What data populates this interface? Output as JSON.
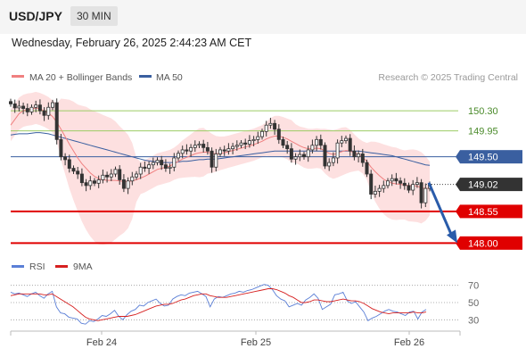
{
  "header": {
    "pair": "USD/JPY",
    "timeframe": "30 MIN"
  },
  "timestamp": "Wednesday, February 26, 2025 2:44:23 AM CET",
  "legend": {
    "ma_label": "MA 20 + Bollinger Bands",
    "ma50_label": "MA 50",
    "credit": "Research © 2025 Trading Central"
  },
  "rsi_legend": {
    "rsi_label": "RSI",
    "ma_label": "9MA"
  },
  "colors": {
    "ma20": "#f08080",
    "ma50": "#3a5fa0",
    "band": "#fde0e0",
    "rsi": "#5b7fd6",
    "rsi_ma": "#d62020",
    "support": "#e00000",
    "resistance": "#9ccc65",
    "arrow": "#2a5caa"
  },
  "chart_data": [
    {
      "type": "candlestick",
      "title": "USD/JPY",
      "ylim": [
        147.85,
        150.55
      ],
      "x_ticks": [
        "Feb 24",
        "Feb 25",
        "Feb 26"
      ],
      "levels": [
        {
          "value": 150.3,
          "label": "150.30",
          "kind": "resistance"
        },
        {
          "value": 149.95,
          "label": "149.95",
          "kind": "resistance"
        },
        {
          "value": 149.5,
          "label": "149.50",
          "kind": "pivot"
        },
        {
          "value": 149.02,
          "label": "149.02",
          "kind": "current"
        },
        {
          "value": 148.55,
          "label": "148.55",
          "kind": "support"
        },
        {
          "value": 148.0,
          "label": "148.00",
          "kind": "support"
        }
      ],
      "series": [
        {
          "name": "Price",
          "values": [
            150.42,
            150.35,
            150.38,
            150.34,
            150.28,
            150.36,
            150.4,
            150.3,
            150.22,
            150.36,
            150.44,
            149.8,
            149.5,
            149.45,
            149.3,
            149.25,
            149.2,
            149.05,
            149.0,
            149.08,
            149.04,
            149.1,
            149.18,
            149.15,
            149.2,
            149.28,
            149.1,
            148.95,
            149.08,
            149.15,
            149.2,
            149.32,
            149.3,
            149.36,
            149.4,
            149.44,
            149.36,
            149.3,
            149.32,
            149.48,
            149.56,
            149.62,
            149.6,
            149.66,
            149.7,
            149.72,
            149.66,
            149.6,
            149.32,
            149.55,
            149.62,
            149.6,
            149.64,
            149.68,
            149.7,
            149.74,
            149.72,
            149.78,
            149.8,
            149.85,
            149.94,
            150.05,
            150.08,
            149.98,
            149.8,
            149.7,
            149.64,
            149.46,
            149.5,
            149.54,
            149.5,
            149.62,
            149.7,
            149.8,
            149.7,
            149.34,
            149.4,
            149.48,
            149.74,
            149.78,
            149.82,
            149.6,
            149.5,
            149.55,
            149.4,
            149.2,
            148.85,
            148.9,
            148.95,
            149.0,
            149.08,
            149.12,
            149.08,
            149.04,
            149.0,
            148.92,
            149.02,
            149.05,
            148.7,
            148.95,
            149.02
          ]
        },
        {
          "name": "MA 20",
          "values": [
            150.05,
            150.15,
            150.25,
            150.3,
            150.32,
            150.33,
            150.35,
            150.33,
            150.3,
            150.26,
            150.2,
            150.1,
            149.98,
            149.85,
            149.72,
            149.6,
            149.48,
            149.38,
            149.3,
            149.22,
            149.16,
            149.12,
            149.1,
            149.09,
            149.09,
            149.09,
            149.08,
            149.07,
            149.07,
            149.08,
            149.1,
            149.13,
            149.16,
            149.2,
            149.24,
            149.28,
            149.3,
            149.32,
            149.34,
            149.38,
            149.42,
            149.46,
            149.49,
            149.52,
            149.55,
            149.57,
            149.58,
            149.58,
            149.56,
            149.55,
            149.56,
            149.57,
            149.59,
            149.61,
            149.63,
            149.65,
            149.67,
            149.69,
            149.71,
            149.74,
            149.77,
            149.81,
            149.84,
            149.86,
            149.86,
            149.84,
            149.81,
            149.77,
            149.73,
            149.69,
            149.66,
            149.64,
            149.64,
            149.65,
            149.64,
            149.6,
            149.56,
            149.54,
            149.56,
            149.59,
            149.61,
            149.6,
            149.57,
            149.54,
            149.49,
            149.42,
            149.32,
            149.24,
            149.17,
            149.11,
            149.07,
            149.04,
            149.03,
            149.02,
            149.01,
            149.0,
            149.0,
            148.99,
            148.96,
            148.95,
            148.95
          ]
        },
        {
          "name": "MA 50",
          "values": [
            149.88,
            149.89,
            149.9,
            149.9,
            149.9,
            149.91,
            149.92,
            149.92,
            149.91,
            149.9,
            149.88,
            149.86,
            149.84,
            149.82,
            149.8,
            149.78,
            149.76,
            149.74,
            149.72,
            149.7,
            149.68,
            149.66,
            149.64,
            149.62,
            149.6,
            149.58,
            149.56,
            149.54,
            149.52,
            149.5,
            149.48,
            149.46,
            149.44,
            149.43,
            149.42,
            149.41,
            149.4,
            149.4,
            149.4,
            149.4,
            149.41,
            149.42,
            149.42,
            149.43,
            149.44,
            149.45,
            149.45,
            149.46,
            149.46,
            149.46,
            149.47,
            149.48,
            149.49,
            149.5,
            149.51,
            149.52,
            149.53,
            149.54,
            149.55,
            149.56,
            149.57,
            149.58,
            149.59,
            149.6,
            149.6,
            149.6,
            149.6,
            149.6,
            149.6,
            149.6,
            149.6,
            149.6,
            149.6,
            149.6,
            149.6,
            149.6,
            149.6,
            149.6,
            149.6,
            149.6,
            149.6,
            149.6,
            149.6,
            149.6,
            149.59,
            149.58,
            149.57,
            149.56,
            149.55,
            149.54,
            149.53,
            149.52,
            149.5,
            149.48,
            149.46,
            149.44,
            149.42,
            149.4,
            149.38,
            149.36,
            149.35
          ]
        }
      ]
    },
    {
      "type": "line",
      "title": "RSI",
      "ylim": [
        20,
        80
      ],
      "y_ticks": [
        70,
        50,
        30
      ],
      "series": [
        {
          "name": "RSI",
          "values": [
            62,
            60,
            61,
            59,
            57,
            60,
            62,
            58,
            55,
            60,
            63,
            45,
            38,
            37,
            33,
            32,
            31,
            26,
            25,
            29,
            28,
            31,
            35,
            34,
            37,
            41,
            34,
            30,
            36,
            40,
            42,
            47,
            46,
            50,
            52,
            54,
            49,
            46,
            47,
            54,
            57,
            59,
            58,
            61,
            62,
            63,
            60,
            57,
            45,
            54,
            57,
            56,
            58,
            60,
            61,
            63,
            62,
            64,
            65,
            67,
            69,
            71,
            70,
            65,
            58,
            54,
            52,
            45,
            47,
            49,
            47,
            53,
            56,
            60,
            55,
            42,
            45,
            48,
            59,
            60,
            62,
            52,
            49,
            51,
            45,
            39,
            29,
            32,
            34,
            37,
            40,
            42,
            40,
            39,
            37,
            35,
            39,
            40,
            31,
            39,
            42
          ]
        },
        {
          "name": "9MA",
          "values": [
            58,
            59,
            60,
            60,
            60,
            60,
            60,
            60,
            59,
            59,
            60,
            57,
            54,
            51,
            48,
            45,
            41,
            37,
            33,
            31,
            30,
            29,
            30,
            31,
            32,
            33,
            34,
            34,
            34,
            35,
            36,
            38,
            40,
            42,
            44,
            46,
            47,
            48,
            48,
            49,
            51,
            53,
            54,
            56,
            58,
            59,
            60,
            60,
            58,
            57,
            56,
            56,
            56,
            57,
            58,
            59,
            60,
            61,
            62,
            63,
            64,
            65,
            66,
            66,
            65,
            63,
            61,
            58,
            56,
            53,
            50,
            50,
            51,
            53,
            53,
            52,
            51,
            51,
            52,
            53,
            54,
            53,
            52,
            52,
            51,
            49,
            46,
            43,
            41,
            39,
            38,
            37,
            38,
            38,
            38,
            38,
            38,
            39,
            38,
            38,
            39
          ]
        }
      ]
    }
  ]
}
